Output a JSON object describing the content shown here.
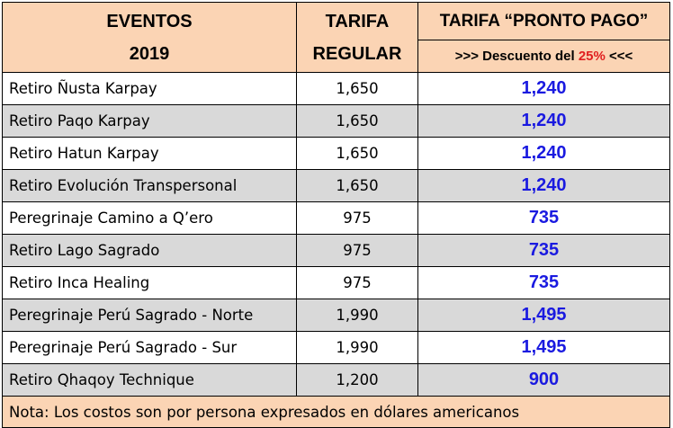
{
  "header": {
    "col1_line1": "EVENTOS",
    "col1_line2": "2019",
    "col2_line1": "TARIFA",
    "col2_line2": "REGULAR",
    "col3_title": "TARIFA “PRONTO PAGO”",
    "col3_sub_pre": ">>> Descuento del ",
    "col3_sub_pct": "25%",
    "col3_sub_post": " <<<"
  },
  "rows": [
    {
      "event": "Retiro Ñusta Karpay",
      "regular": "1,650",
      "pronto": "1,240"
    },
    {
      "event": "Retiro Paqo Karpay",
      "regular": "1,650",
      "pronto": "1,240"
    },
    {
      "event": "Retiro Hatun Karpay",
      "regular": "1,650",
      "pronto": "1,240"
    },
    {
      "event": "Retiro Evolución Transpersonal",
      "regular": "1,650",
      "pronto": "1,240"
    },
    {
      "event": "Peregrinaje Camino a Q’ero",
      "regular": "975",
      "pronto": "735"
    },
    {
      "event": "Retiro Lago Sagrado",
      "regular": "975",
      "pronto": "735"
    },
    {
      "event": "Retiro Inca Healing",
      "regular": "975",
      "pronto": "735"
    },
    {
      "event": "Peregrinaje Perú Sagrado - Norte",
      "regular": "1,990",
      "pronto": "1,495"
    },
    {
      "event": "Peregrinaje Perú Sagrado - Sur",
      "regular": "1,990",
      "pronto": "1,495"
    },
    {
      "event": "Retiro Qhaqoy Technique",
      "regular": "1,200",
      "pronto": "900"
    }
  ],
  "note": "Nota: Los costos son por persona expresados en dólares americanos",
  "colors": {
    "header_bg": "#fbd4b4",
    "alt_row_bg": "#d9d9d9",
    "pronto_text": "#1a1ae0",
    "discount_highlight": "#e02020"
  }
}
